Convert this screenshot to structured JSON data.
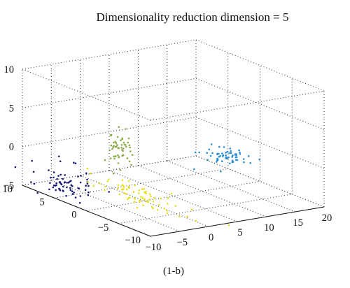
{
  "chart_data": {
    "type": "scatter",
    "projection": "3d",
    "title": "Dimensionality reduction dimension = 5",
    "caption": "(1-b)",
    "grid": true,
    "xlim": [
      -10,
      10
    ],
    "ylim": [
      -10,
      20
    ],
    "zlim": [
      -5,
      10
    ],
    "xticks": [
      "10",
      "5",
      "0",
      "−5",
      "−10"
    ],
    "xtick_values": [
      10,
      5,
      0,
      -5,
      -10
    ],
    "yticks": [
      "−10",
      "−5",
      "0",
      "5",
      "10",
      "15",
      "20"
    ],
    "ytick_values": [
      -10,
      -5,
      0,
      5,
      10,
      15,
      20
    ],
    "zticks": [
      "10",
      "5",
      "0",
      "−5"
    ],
    "ztick_values": [
      10,
      5,
      0,
      -5
    ],
    "series": [
      {
        "color": "#1a1a78",
        "center": {
          "x": 4,
          "y": -9,
          "z": -3
        },
        "spread": {
          "x": 2.2,
          "y": 1.6,
          "z": 0.9
        },
        "count": 70
      },
      {
        "color": "#8aaa44",
        "center": {
          "x": -2,
          "y": -6.5,
          "z": 3.5
        },
        "spread": {
          "x": 0.9,
          "y": 0.8,
          "z": 1.5
        },
        "count": 55
      },
      {
        "color": "#2a8fd0",
        "center": {
          "x": -9.5,
          "y": 4,
          "z": 3.5
        },
        "spread": {
          "x": 1.2,
          "y": 1.4,
          "z": 0.4
        },
        "count": 60
      },
      {
        "color": "#e8e01c",
        "center": {
          "x": 2,
          "y": 1,
          "z": -5
        },
        "spread": {
          "x": 3.6,
          "y": 0.9,
          "z": 0.6
        },
        "count": 75
      }
    ]
  }
}
